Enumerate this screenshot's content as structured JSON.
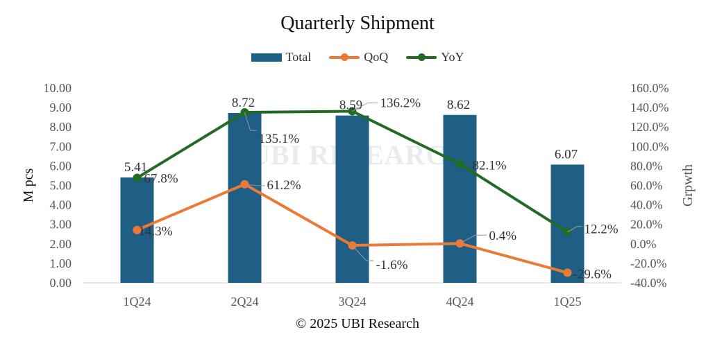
{
  "chart_data": {
    "type": "bar",
    "title": "Quarterly Shipment",
    "categories": [
      "1Q24",
      "2Q24",
      "3Q24",
      "4Q24",
      "1Q25"
    ],
    "series": [
      {
        "name": "Total",
        "type": "bar",
        "axis": "left",
        "color": "#1f5f85",
        "values": [
          5.41,
          8.72,
          8.59,
          8.62,
          6.07
        ],
        "labels": [
          "5.41",
          "8.72",
          "8.59",
          "8.62",
          "6.07"
        ]
      },
      {
        "name": "QoQ",
        "type": "line",
        "axis": "right",
        "color": "#ec7a37",
        "values": [
          14.3,
          61.2,
          -1.6,
          0.4,
          -29.6
        ],
        "labels": [
          "14.3%",
          "61.2%",
          "-1.6%",
          "0.4%",
          "-29.6%"
        ]
      },
      {
        "name": "YoY",
        "type": "line",
        "axis": "right",
        "color": "#226b24",
        "values": [
          67.8,
          135.1,
          136.2,
          82.1,
          12.2
        ],
        "labels": [
          "67.8%",
          "135.1%",
          "136.2%",
          "82.1%",
          "12.2%"
        ]
      }
    ],
    "ylabel": "M pcs",
    "y2label": "Grpwth",
    "ylim": [
      0,
      10
    ],
    "y2lim": [
      -40,
      160
    ],
    "yticks": [
      "0.00",
      "1.00",
      "2.00",
      "3.00",
      "4.00",
      "5.00",
      "6.00",
      "7.00",
      "8.00",
      "9.00",
      "10.00"
    ],
    "y2ticks": [
      "-40.0%",
      "-20.0%",
      "0.0%",
      "20.0%",
      "40.0%",
      "60.0%",
      "80.0%",
      "100.0%",
      "120.0%",
      "140.0%",
      "160.0%"
    ],
    "grid": false,
    "legend": "top-center"
  },
  "footer": "© 2025 UBI Research",
  "watermark": "UBI RESEARCH"
}
